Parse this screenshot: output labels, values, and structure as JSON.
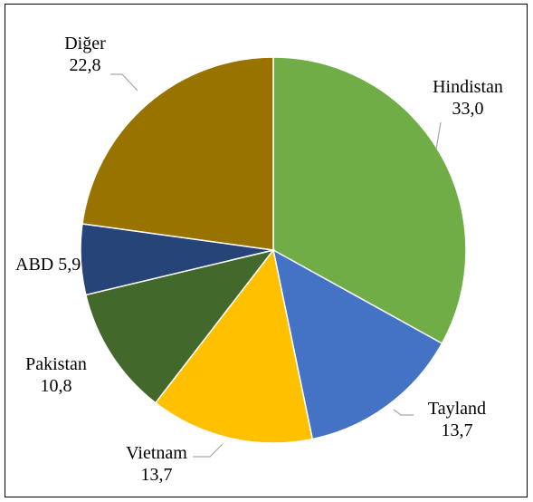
{
  "chart_data": {
    "type": "pie",
    "start_angle_deg": 0,
    "direction": "clockwise",
    "slices": [
      {
        "label": "Hindistan",
        "value": 33.0,
        "value_text": "33,0",
        "color": "#70ad47"
      },
      {
        "label": "Tayland",
        "value": 13.7,
        "value_text": "13,7",
        "color": "#4472c4"
      },
      {
        "label": "Vietnam",
        "value": 13.7,
        "value_text": "13,7",
        "color": "#ffc000"
      },
      {
        "label": "Pakistan",
        "value": 10.8,
        "value_text": "10,8",
        "color": "#43682b"
      },
      {
        "label": "ABD",
        "value": 5.9,
        "value_text": "5,9",
        "color": "#264478"
      },
      {
        "label": "Diğer",
        "value": 22.8,
        "value_text": "22,8",
        "color": "#997300"
      }
    ]
  }
}
